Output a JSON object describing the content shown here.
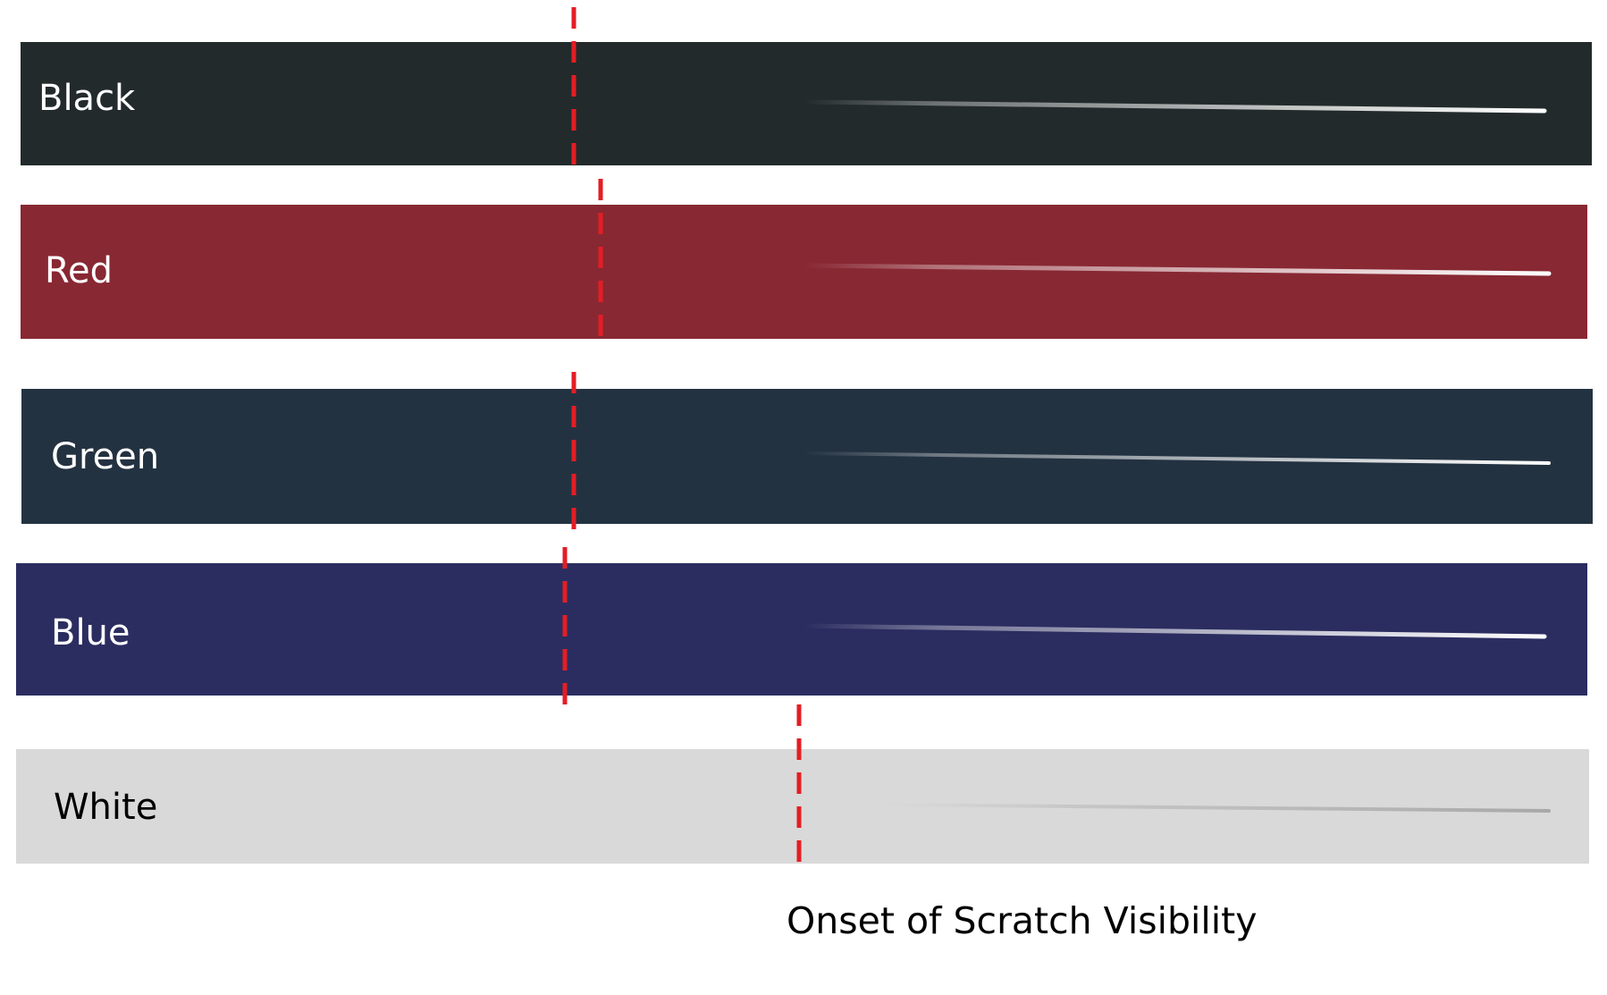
{
  "panels": [
    {
      "label": "Black",
      "bg": "#232a2b",
      "text_color": "#ffffff",
      "scratch_color": "#ffffff"
    },
    {
      "label": "Red",
      "bg": "#882833",
      "text_color": "#ffffff",
      "scratch_color": "#ffffff"
    },
    {
      "label": "Green",
      "bg": "#233241",
      "text_color": "#ffffff",
      "scratch_color": "#ffffff"
    },
    {
      "label": "Blue",
      "bg": "#2b2d60",
      "text_color": "#ffffff",
      "scratch_color": "#ffffff"
    },
    {
      "label": "White",
      "bg": "#d9d9d9",
      "text_color": "#000000",
      "scratch_color": "#ffffff"
    }
  ],
  "marker_color": "#e31e24",
  "caption": "Onset of Scratch Visibility"
}
